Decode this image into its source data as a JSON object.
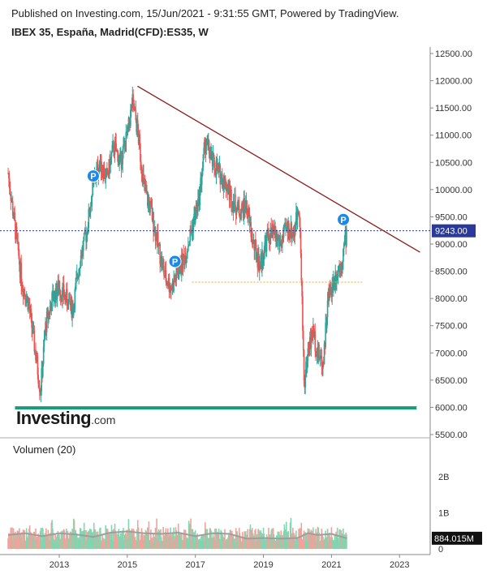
{
  "header": {
    "published": "Published on Investing.com, 15/Jun/2021 - 9:31:55 GMT, Powered by TradingView.",
    "symbol": "IBEX 35, España, Madrid(CFD):ES35, W"
  },
  "logo": {
    "main": "Investing",
    "suffix": ".com"
  },
  "colors": {
    "up": "#26a69a",
    "down": "#ef5350",
    "trend": "#8b1a1a",
    "support": "#1a9a7a",
    "price_line": "#2a3a9a",
    "level": "#f5a623",
    "marker": "#1e88e5"
  },
  "chart_data": [
    {
      "type": "candlestick",
      "title": "IBEX 35, España, Madrid(CFD):ES35, W",
      "timeframe": "W",
      "ylim": [
        5500,
        12500
      ],
      "y_ticks": [
        "12500.00",
        "12000.00",
        "11500.00",
        "11000.00",
        "10500.00",
        "10000.00",
        "9500.00",
        "9000.00",
        "8500.00",
        "8000.00",
        "7500.00",
        "7000.00",
        "6500.00",
        "6000.00",
        "5500.00"
      ],
      "x_ticks": [
        "2013",
        "2015",
        "2017",
        "2019",
        "2021",
        "2023"
      ],
      "last_price_label": "9243.00",
      "close_series": {
        "x": [
          2011.5,
          2011.7,
          2011.9,
          2012.1,
          2012.3,
          2012.45,
          2012.6,
          2012.8,
          2013.0,
          2013.2,
          2013.4,
          2013.6,
          2013.8,
          2014.0,
          2014.2,
          2014.4,
          2014.6,
          2014.8,
          2015.0,
          2015.15,
          2015.3,
          2015.5,
          2015.7,
          2015.9,
          2016.1,
          2016.3,
          2016.5,
          2016.7,
          2016.9,
          2017.1,
          2017.3,
          2017.5,
          2017.7,
          2017.9,
          2018.1,
          2018.3,
          2018.5,
          2018.7,
          2018.9,
          2019.1,
          2019.3,
          2019.5,
          2019.7,
          2019.9,
          2020.05,
          2020.2,
          2020.3,
          2020.45,
          2020.6,
          2020.75,
          2020.9,
          2021.1,
          2021.3,
          2021.45
        ],
        "y": [
          10300,
          9300,
          8300,
          7900,
          7000,
          6300,
          7500,
          8000,
          8200,
          8000,
          7800,
          8700,
          9200,
          10100,
          10500,
          10200,
          10800,
          10500,
          11000,
          11600,
          11100,
          10000,
          9600,
          9000,
          8400,
          8200,
          8500,
          8800,
          9300,
          9800,
          10900,
          10500,
          10300,
          10100,
          9800,
          9600,
          9700,
          9000,
          8600,
          9100,
          9200,
          9000,
          9300,
          9200,
          9800,
          6400,
          7000,
          7400,
          7000,
          6800,
          8000,
          8400,
          8700,
          9243
        ]
      },
      "trendline": {
        "x": [
          2015.3,
          2023.6
        ],
        "y": [
          11900,
          8850
        ]
      },
      "support_line": {
        "x": [
          2011.7,
          2023.5
        ],
        "y": [
          5990,
          5990
        ]
      },
      "level_line": {
        "x": [
          2016.9,
          2021.9
        ],
        "y": [
          8300,
          8300
        ]
      },
      "price_line": {
        "y": 9243
      },
      "markers": [
        {
          "label": "P",
          "x": 2014.0,
          "y": 10250
        },
        {
          "label": "P",
          "x": 2016.4,
          "y": 8680
        },
        {
          "label": "P",
          "x": 2021.35,
          "y": 9450
        }
      ]
    },
    {
      "type": "bar",
      "title": "Volumen (20)",
      "ylim": [
        0,
        3000000000
      ],
      "y_ticks": [
        "2B",
        "1B",
        "0"
      ],
      "last_value_label": "884.015M",
      "ma_series": {
        "x": [
          2011.5,
          2012.0,
          2012.5,
          2013.0,
          2013.5,
          2014.0,
          2014.5,
          2015.0,
          2015.5,
          2016.0,
          2016.5,
          2017.0,
          2017.5,
          2018.0,
          2018.5,
          2019.0,
          2019.5,
          2020.0,
          2020.3,
          2020.6,
          2021.0,
          2021.45
        ],
        "y": [
          1.15,
          1.3,
          1.05,
          1.3,
          1.2,
          1.0,
          1.35,
          1.45,
          1.3,
          1.25,
          1.35,
          1.05,
          1.3,
          1.25,
          0.85,
          0.9,
          0.85,
          0.9,
          1.3,
          1.15,
          1.25,
          0.88
        ]
      }
    }
  ]
}
